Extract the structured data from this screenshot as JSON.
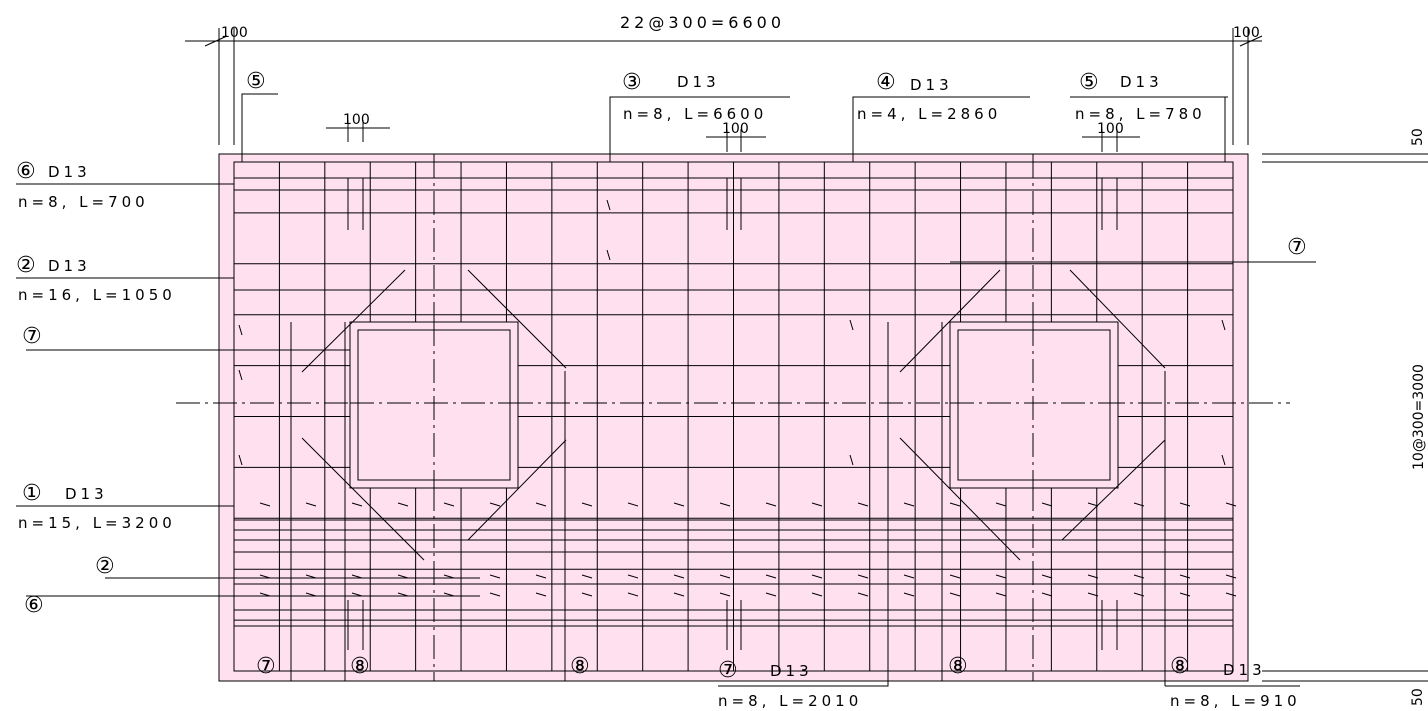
{
  "drawing": {
    "top_dimension": "22@300=6600",
    "side_dimension": "10@300=3000",
    "edge_dim_top_left": "100",
    "edge_dim_top_right": "100",
    "spacing_dims": [
      "100",
      "100",
      "100"
    ],
    "edge_dim_right_top": "50",
    "edge_dim_right_bottom": "50"
  },
  "bars": {
    "b1": {
      "mark": "①",
      "spec": "D13",
      "qty": "n=15, L=3200"
    },
    "b2": {
      "mark": "②",
      "spec": "D13",
      "qty": "n=16, L=1050"
    },
    "b3": {
      "mark": "③",
      "spec": "D13",
      "qty": "n=8, L=6600"
    },
    "b4": {
      "mark": "④",
      "spec": "D13",
      "qty": "n=4, L=2860"
    },
    "b5": {
      "mark": "⑤",
      "spec": "D13",
      "qty": "n=8, L=780"
    },
    "b6": {
      "mark": "⑥",
      "spec": "D13",
      "qty": "n=8, L=700"
    },
    "b7": {
      "mark": "⑦",
      "spec": "D13",
      "qty": "n=8, L=2010"
    },
    "b8": {
      "mark": "⑧",
      "spec": "D13",
      "qty": "n=8, L=910"
    }
  },
  "colors": {
    "slab_fill": "#ffe0ef",
    "line": "#000000"
  }
}
